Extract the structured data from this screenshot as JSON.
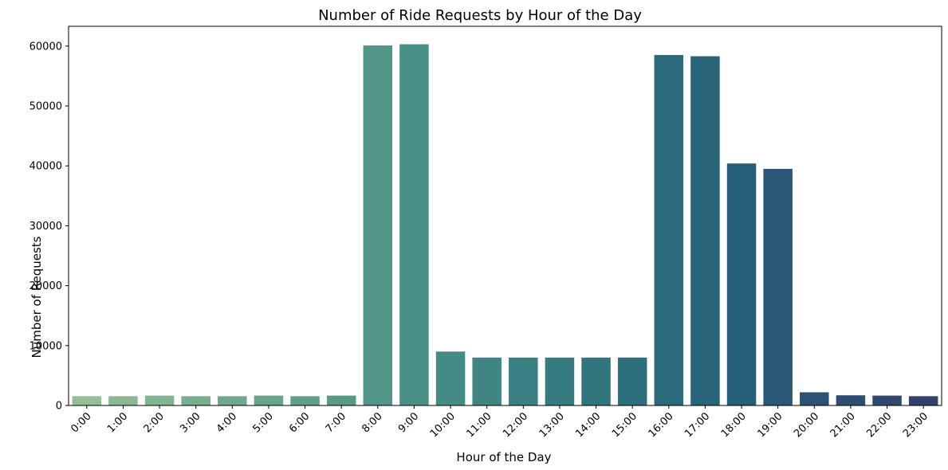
{
  "chart_data": {
    "type": "bar",
    "title": "Number of Ride Requests by Hour of the Day",
    "xlabel": "Hour of the Day",
    "ylabel": "Number of Requests",
    "categories": [
      "0:00",
      "1:00",
      "2:00",
      "3:00",
      "4:00",
      "5:00",
      "6:00",
      "7:00",
      "8:00",
      "9:00",
      "10:00",
      "11:00",
      "12:00",
      "13:00",
      "14:00",
      "15:00",
      "16:00",
      "17:00",
      "18:00",
      "19:00",
      "20:00",
      "21:00",
      "22:00",
      "23:00"
    ],
    "values": [
      1550,
      1550,
      1650,
      1550,
      1550,
      1650,
      1550,
      1650,
      60100,
      60300,
      9000,
      8000,
      8000,
      8000,
      8000,
      8000,
      58500,
      58300,
      40400,
      39500,
      2200,
      1700,
      1650,
      1550
    ],
    "ylim": [
      0,
      63300
    ],
    "yticks": [
      "0",
      "10000",
      "20000",
      "30000",
      "40000",
      "50000",
      "60000"
    ],
    "grid": false,
    "legend": "none",
    "palette": "crest",
    "bar_colors": [
      "#93be96",
      "#8ab893",
      "#81b490",
      "#78ae8e",
      "#6fa98c",
      "#67a58a",
      "#5f9f89",
      "#579a88",
      "#509587",
      "#4a9086",
      "#448b85",
      "#3f8683",
      "#3a8082",
      "#357b80",
      "#31757f",
      "#2d707d",
      "#2a6a7b",
      "#28647a",
      "#285f78",
      "#295976",
      "#2b5374",
      "#2d4d71",
      "#30476e",
      "#32416c"
    ]
  }
}
